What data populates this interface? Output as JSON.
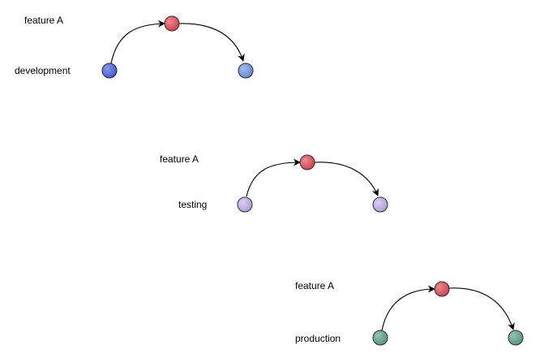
{
  "flows": [
    {
      "id": "development",
      "branch_label": "development",
      "feature_label": "feature A",
      "branch_color": "#4a5fe6",
      "branch_color_end": "#6f95e6",
      "feature_color": "#e34a58"
    },
    {
      "id": "testing",
      "branch_label": "testing",
      "feature_label": "feature A",
      "branch_color": "#c3b0ee",
      "branch_color_end": "#c3b0ee",
      "feature_color": "#e34a58"
    },
    {
      "id": "production",
      "branch_label": "production",
      "feature_label": "feature A",
      "branch_color": "#5fa38f",
      "branch_color_end": "#5fa38f",
      "feature_color": "#e34a58"
    }
  ]
}
